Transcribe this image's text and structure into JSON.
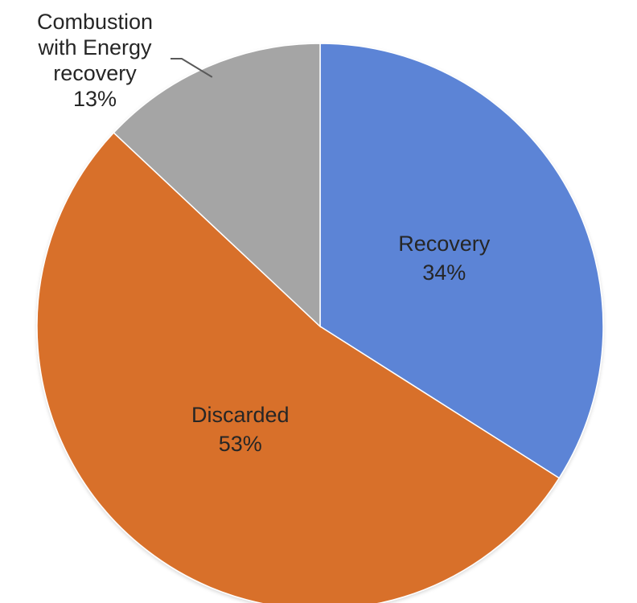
{
  "chart_data": {
    "type": "pie",
    "title": "",
    "start_angle_deg": 0,
    "direction": "clockwise",
    "slices": [
      {
        "name": "Recovery",
        "value": 34,
        "label_lines": [
          "Recovery",
          "34%"
        ],
        "color": "#5B84D6"
      },
      {
        "name": "Discarded",
        "value": 53,
        "label_lines": [
          "Discarded",
          "53%"
        ],
        "color": "#D86F2A"
      },
      {
        "name": "Combustion with Energy recovery",
        "value": 13,
        "label_lines": [
          "Combustion",
          "with Energy",
          "recovery",
          "13%"
        ],
        "color": "#A5A5A5"
      }
    ],
    "legend": "none",
    "data_labels": "category-and-percent"
  }
}
